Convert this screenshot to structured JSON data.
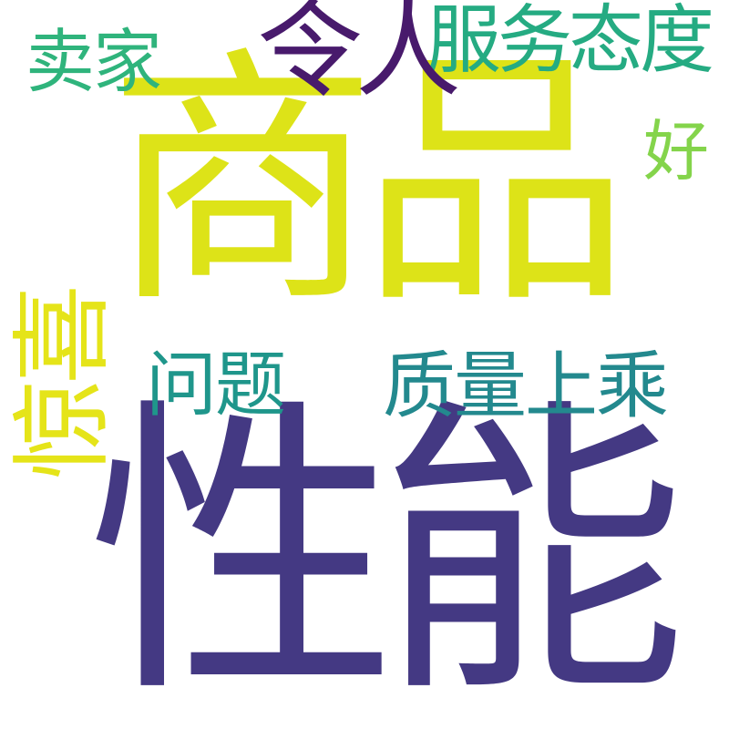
{
  "words": [
    {
      "id": "shangpin",
      "text": "商品",
      "color": "#dde318"
    },
    {
      "id": "xingneng",
      "text": "性能",
      "color": "#443983"
    },
    {
      "id": "fuwu",
      "text": "服务态度",
      "color": "#25ab82"
    },
    {
      "id": "lingren",
      "text": "令人",
      "color": "#481a6c"
    },
    {
      "id": "maijia",
      "text": "卖家",
      "color": "#2fb47c"
    },
    {
      "id": "hao",
      "text": "好",
      "color": "#84d44b"
    },
    {
      "id": "jingxi",
      "text": "惊喜",
      "color": "#e5e419"
    },
    {
      "id": "wenti",
      "text": "问题",
      "color": "#1f968b"
    },
    {
      "id": "zhiliang",
      "text": "质量上乘",
      "color": "#23898e"
    }
  ]
}
